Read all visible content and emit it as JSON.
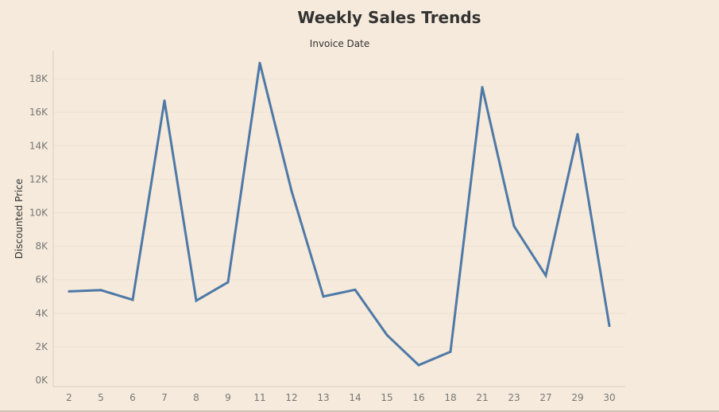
{
  "chart_data": {
    "type": "line",
    "title": "Weekly Sales Trends",
    "xlabel": "Invoice Date",
    "ylabel": "Discounted Price",
    "categories": [
      "2",
      "5",
      "6",
      "7",
      "8",
      "9",
      "11",
      "12",
      "13",
      "14",
      "15",
      "16",
      "18",
      "21",
      "23",
      "27",
      "29",
      "30"
    ],
    "series": [
      {
        "values": [
          5300,
          5380,
          4800,
          16700,
          4750,
          5850,
          18950,
          11300,
          5000,
          5400,
          2700,
          900,
          1700,
          17500,
          9200,
          6250,
          14700,
          3250
        ],
        "color": "#4e79a7"
      }
    ],
    "yticks": [
      {
        "value": 0,
        "label": "0K"
      },
      {
        "value": 2000,
        "label": "2K"
      },
      {
        "value": 4000,
        "label": "4K"
      },
      {
        "value": 6000,
        "label": "6K"
      },
      {
        "value": 8000,
        "label": "8K"
      },
      {
        "value": 10000,
        "label": "10K"
      },
      {
        "value": 12000,
        "label": "12K"
      },
      {
        "value": 14000,
        "label": "14K"
      },
      {
        "value": 16000,
        "label": "16K"
      },
      {
        "value": 18000,
        "label": "18K"
      }
    ],
    "ylim": [
      0,
      19000
    ],
    "grid": true,
    "colors": {
      "background": "#f5eadb",
      "grid": "#ede2d2",
      "axis": "#d9cfc0",
      "tick_text": "#777777",
      "title_text": "#333333"
    }
  }
}
